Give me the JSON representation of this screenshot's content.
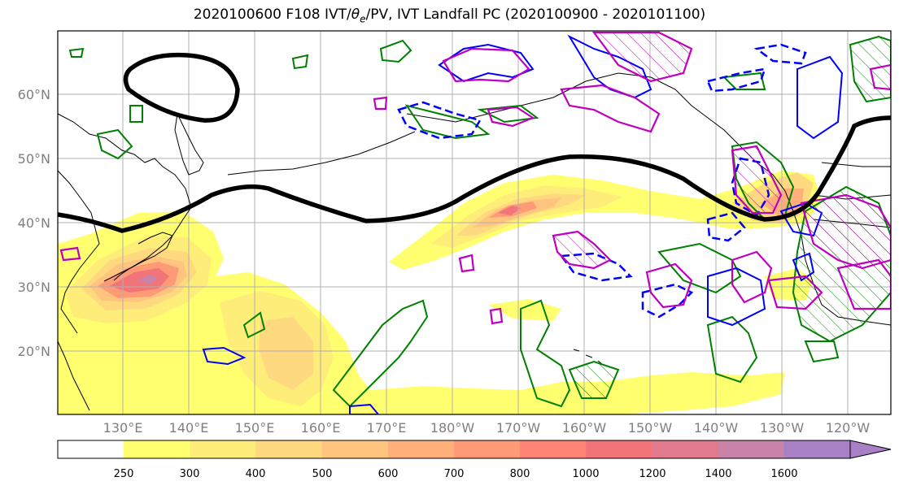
{
  "title": {
    "prefix": "2020100600 F108 IVT/",
    "theta": "θ",
    "theta_sub": "e",
    "suffix": "/PV, IVT Landfall PC (2020100900 - 2020101100)"
  },
  "map": {
    "lat_labels": [
      "60°N",
      "50°N",
      "40°N",
      "30°N",
      "20°N"
    ],
    "lon_labels": [
      "130°E",
      "140°E",
      "150°E",
      "160°E",
      "170°E",
      "180°W",
      "170°W",
      "160°W",
      "150°W",
      "140°W",
      "130°W",
      "120°W"
    ],
    "gridlines": true
  },
  "colorbar": {
    "ticks": [
      "250",
      "300",
      "400",
      "500",
      "600",
      "700",
      "800",
      "1000",
      "1200",
      "1400",
      "1600"
    ],
    "colors": [
      "#ffff70",
      "#ffed7a",
      "#ffd980",
      "#ffc57e",
      "#ffb07a",
      "#ff9a76",
      "#ff8475",
      "#f27378",
      "#e07a8c",
      "#c983a8",
      "#a880c5"
    ],
    "extend": "max"
  },
  "colors": {
    "ivt_contour_lines": "#ff8f6b",
    "theta_e_pos": "#008000",
    "theta_e_neg": "#0000ff",
    "pv": "#bf00bf",
    "pc_contour": "#000000"
  }
}
